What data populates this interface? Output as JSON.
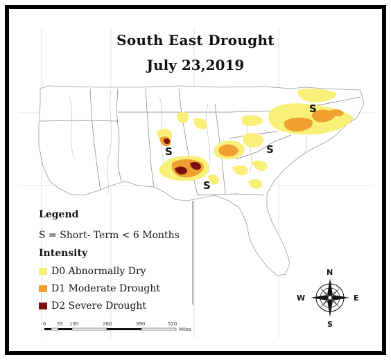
{
  "map": {
    "title": "South East Drought",
    "subtitle": "July 23,2019"
  },
  "legend": {
    "title": "Legend",
    "short_term": "S = Short- Term < 6 Months",
    "intensity_title": "Intensity",
    "items": [
      {
        "label": "D0 Abnormally Dry",
        "color": "#f9f07a"
      },
      {
        "label": "D1 Moderate Drought",
        "color": "#f0a030"
      },
      {
        "label": "D2 Severe Drought",
        "color": "#7a1010"
      }
    ]
  },
  "markers": [
    "S",
    "S",
    "S",
    "S"
  ],
  "scale_bar": {
    "ticks": [
      "0",
      "55",
      "130",
      "260",
      "390",
      "520"
    ],
    "unit": "Miles"
  },
  "compass": {
    "n": "N",
    "s": "S",
    "e": "E",
    "w": "W"
  },
  "colors": {
    "d0": "#f9f07a",
    "d1": "#f0a030",
    "d2": "#7a1010",
    "frame": "#000000",
    "land": "#ffffff",
    "boundary": "#555555"
  }
}
